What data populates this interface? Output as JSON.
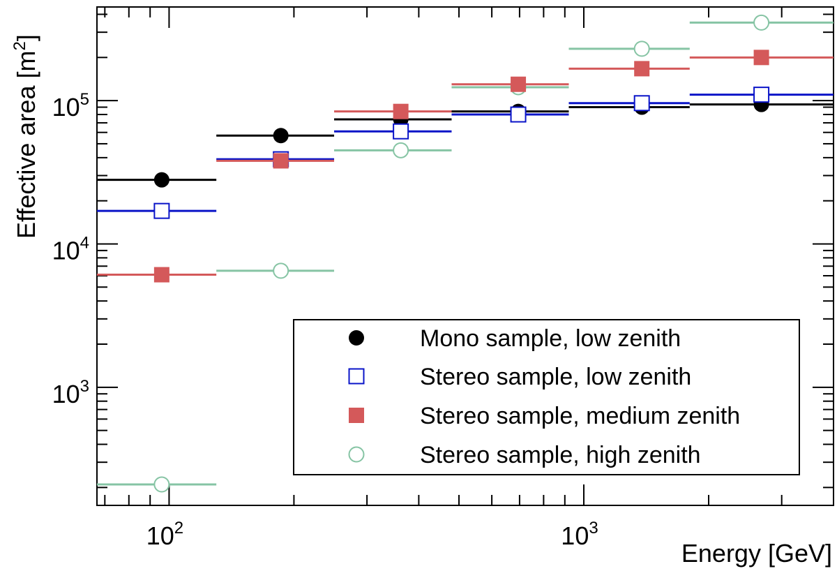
{
  "chart_data": {
    "type": "scatter",
    "xscale": "log",
    "yscale": "log",
    "xlabel": "Energy [GeV]",
    "ylabel": "Effective area [m",
    "ylabel_sup": "2",
    "ylabel_close": "]",
    "xlim": [
      67,
      4000
    ],
    "ylim": [
      150,
      450000
    ],
    "x_tick_labels": [
      {
        "base": "10",
        "exp": "2",
        "value": 100
      },
      {
        "base": "10",
        "exp": "3",
        "value": 1000
      }
    ],
    "y_tick_labels": [
      {
        "base": "10",
        "exp": "3",
        "value": 1000
      },
      {
        "base": "10",
        "exp": "4",
        "value": 10000
      },
      {
        "base": "10",
        "exp": "5",
        "value": 100000
      }
    ],
    "bin_edges": [
      67,
      130,
      250,
      480,
      920,
      1800,
      4000
    ],
    "bin_centers": [
      96,
      186,
      362,
      695,
      1380,
      2680
    ],
    "series": [
      {
        "name": "Mono sample, low zenith",
        "color": "#000000",
        "marker": "filled-circle",
        "values": [
          28000,
          57000,
          74000,
          84000,
          90000,
          94000
        ],
        "line_values": [
          28000,
          57000,
          74000,
          84000,
          90000,
          94000
        ]
      },
      {
        "name": "Stereo sample, low zenith",
        "color": "#0a14c8",
        "marker": "open-square",
        "values": [
          17000,
          39000,
          61000,
          80000,
          96000,
          110000
        ],
        "line_values": [
          17000,
          39000,
          61000,
          80000,
          96000,
          110000
        ]
      },
      {
        "name": "Stereo sample, medium zenith",
        "color": "#d4595a",
        "marker": "filled-square",
        "values": [
          6100,
          38000,
          84000,
          130000,
          167000,
          200000
        ],
        "line_values": [
          6100,
          38000,
          84000,
          130000,
          167000,
          200000
        ]
      },
      {
        "name": "Stereo sample, high zenith",
        "color": "#86c4a4",
        "marker": "open-circle",
        "values": [
          210,
          6500,
          45000,
          124000,
          230000,
          350000
        ],
        "line_values": [
          210,
          6500,
          45000,
          124000,
          230000,
          350000
        ]
      }
    ],
    "legend": {
      "position": "bottom-right",
      "entries": [
        "Mono sample, low zenith",
        "Stereo sample, low zenith",
        "Stereo sample, medium zenith",
        "Stereo sample, high zenith"
      ]
    }
  }
}
